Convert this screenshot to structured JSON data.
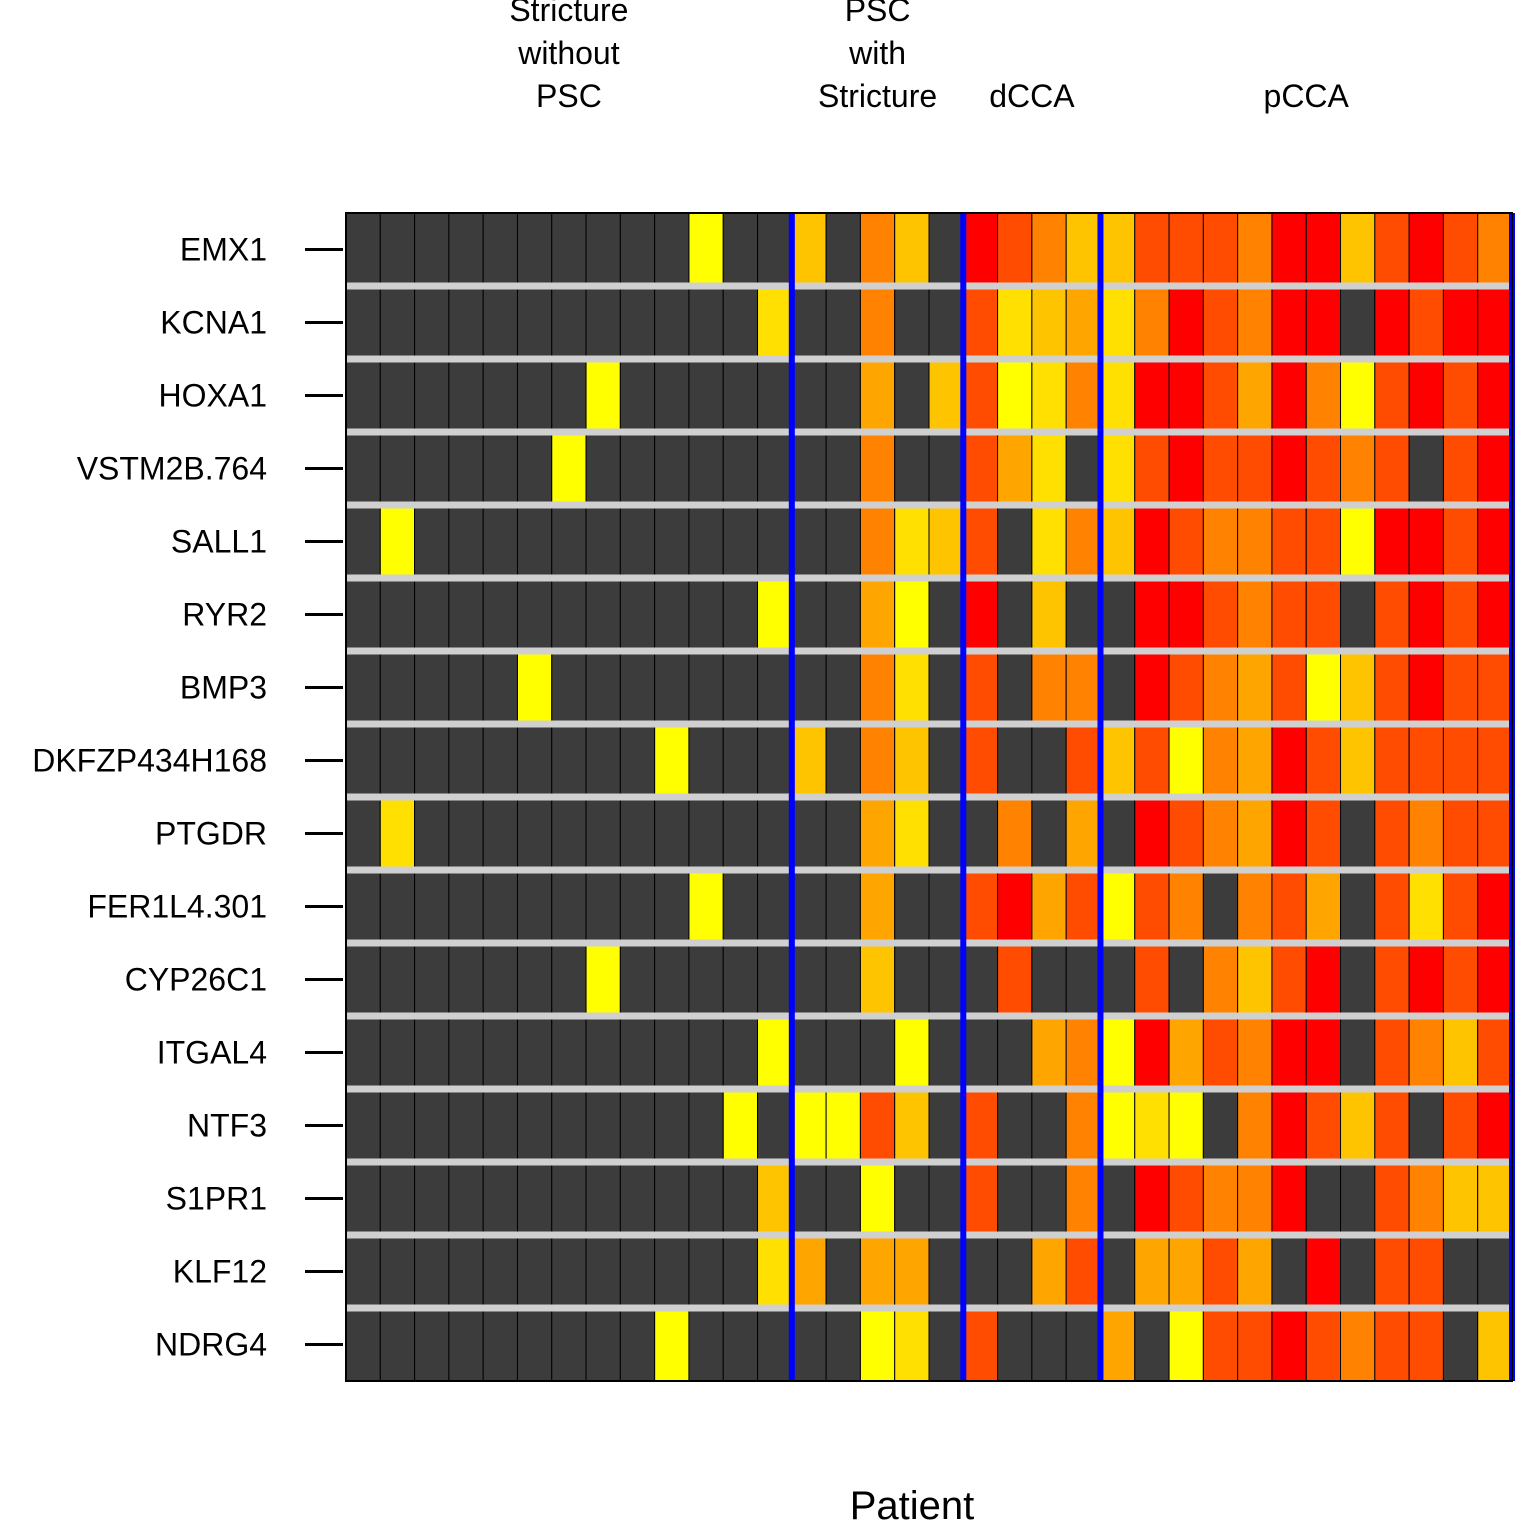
{
  "chart_data": {
    "type": "heatmap",
    "xlabel": "Patient",
    "groups": [
      {
        "label": [
          "Stricture",
          "without",
          "PSC"
        ],
        "count": 13
      },
      {
        "label": [
          "PSC",
          "with",
          "Stricture"
        ],
        "count": 5
      },
      {
        "label": [
          "dCCA"
        ],
        "count": 4
      },
      {
        "label": [
          "pCCA"
        ],
        "count": 12
      }
    ],
    "genes": [
      "EMX1",
      "KCNA1",
      "HOXA1",
      "VSTM2B.764",
      "SALL1",
      "RYR2",
      "BMP3",
      "DKFZP434H168",
      "PTGDR",
      "FER1L4.301",
      "CYP26C1",
      "ITGAL4",
      "NTF3",
      "S1PR1",
      "KLF12",
      "NDRG4"
    ],
    "value_scale": {
      "min": 0,
      "max": 7,
      "note": "0 = not methylated (dark grey); 1 = yellow ... 7 = red"
    },
    "palette": [
      "#3c3c3c",
      "#ffff00",
      "#ffe000",
      "#ffc400",
      "#ffa500",
      "#ff8300",
      "#ff4c00",
      "#ff0000"
    ],
    "group_separator_color": "#0000ff",
    "row_separator_color": "#d0d0d0",
    "values": [
      [
        0,
        0,
        0,
        0,
        0,
        0,
        0,
        0,
        0,
        0,
        1,
        0,
        0,
        3,
        0,
        5,
        3,
        0,
        7,
        6,
        5,
        3,
        3,
        6,
        6,
        6,
        5,
        7,
        7,
        3,
        6,
        7,
        6,
        5
      ],
      [
        0,
        0,
        0,
        0,
        0,
        0,
        0,
        0,
        0,
        0,
        0,
        0,
        2,
        0,
        0,
        5,
        0,
        0,
        6,
        2,
        3,
        4,
        2,
        5,
        7,
        6,
        5,
        7,
        7,
        0,
        7,
        6,
        7,
        7
      ],
      [
        0,
        0,
        0,
        0,
        0,
        0,
        0,
        1,
        0,
        0,
        0,
        0,
        0,
        0,
        0,
        4,
        0,
        3,
        6,
        1,
        2,
        5,
        2,
        7,
        7,
        6,
        4,
        7,
        5,
        1,
        6,
        7,
        6,
        7
      ],
      [
        0,
        0,
        0,
        0,
        0,
        0,
        1,
        0,
        0,
        0,
        0,
        0,
        0,
        0,
        0,
        5,
        0,
        0,
        6,
        4,
        2,
        0,
        2,
        6,
        7,
        6,
        6,
        7,
        6,
        5,
        6,
        0,
        6,
        7
      ],
      [
        0,
        1,
        0,
        0,
        0,
        0,
        0,
        0,
        0,
        0,
        0,
        0,
        0,
        0,
        0,
        5,
        2,
        3,
        6,
        0,
        2,
        5,
        3,
        7,
        6,
        5,
        5,
        6,
        6,
        1,
        7,
        7,
        6,
        7
      ],
      [
        0,
        0,
        0,
        0,
        0,
        0,
        0,
        0,
        0,
        0,
        0,
        0,
        1,
        0,
        0,
        4,
        1,
        0,
        7,
        0,
        3,
        0,
        0,
        7,
        7,
        6,
        5,
        6,
        6,
        0,
        6,
        7,
        6,
        7
      ],
      [
        0,
        0,
        0,
        0,
        0,
        1,
        0,
        0,
        0,
        0,
        0,
        0,
        0,
        0,
        0,
        5,
        2,
        0,
        6,
        0,
        5,
        5,
        0,
        7,
        6,
        5,
        4,
        6,
        1,
        3,
        6,
        7,
        6,
        6
      ],
      [
        0,
        0,
        0,
        0,
        0,
        0,
        0,
        0,
        0,
        1,
        0,
        0,
        0,
        3,
        0,
        5,
        3,
        0,
        6,
        0,
        0,
        6,
        3,
        6,
        1,
        5,
        4,
        7,
        6,
        3,
        6,
        6,
        6,
        6
      ],
      [
        0,
        2,
        0,
        0,
        0,
        0,
        0,
        0,
        0,
        0,
        0,
        0,
        0,
        0,
        0,
        4,
        2,
        0,
        0,
        5,
        0,
        4,
        0,
        7,
        6,
        5,
        4,
        7,
        6,
        0,
        6,
        5,
        6,
        6
      ],
      [
        0,
        0,
        0,
        0,
        0,
        0,
        0,
        0,
        0,
        0,
        1,
        0,
        0,
        0,
        0,
        4,
        0,
        0,
        6,
        7,
        4,
        6,
        1,
        6,
        5,
        0,
        5,
        6,
        4,
        0,
        6,
        2,
        6,
        7
      ],
      [
        0,
        0,
        0,
        0,
        0,
        0,
        0,
        1,
        0,
        0,
        0,
        0,
        0,
        0,
        0,
        3,
        0,
        0,
        0,
        6,
        0,
        0,
        0,
        6,
        0,
        5,
        3,
        6,
        7,
        0,
        6,
        7,
        6,
        7
      ],
      [
        0,
        0,
        0,
        0,
        0,
        0,
        0,
        0,
        0,
        0,
        0,
        0,
        1,
        0,
        0,
        0,
        1,
        0,
        0,
        0,
        4,
        5,
        1,
        7,
        4,
        6,
        5,
        7,
        7,
        0,
        6,
        5,
        3,
        6
      ],
      [
        0,
        0,
        0,
        0,
        0,
        0,
        0,
        0,
        0,
        0,
        0,
        1,
        0,
        1,
        1,
        6,
        3,
        0,
        6,
        0,
        0,
        5,
        1,
        2,
        1,
        0,
        5,
        7,
        6,
        3,
        6,
        0,
        6,
        7
      ],
      [
        0,
        0,
        0,
        0,
        0,
        0,
        0,
        0,
        0,
        0,
        0,
        0,
        3,
        0,
        0,
        1,
        0,
        0,
        6,
        0,
        0,
        5,
        0,
        7,
        6,
        5,
        5,
        7,
        0,
        0,
        6,
        5,
        3,
        3
      ],
      [
        0,
        0,
        0,
        0,
        0,
        0,
        0,
        0,
        0,
        0,
        0,
        0,
        2,
        4,
        0,
        4,
        4,
        0,
        0,
        0,
        4,
        6,
        0,
        4,
        4,
        6,
        4,
        0,
        7,
        0,
        6,
        6,
        0,
        0
      ],
      [
        0,
        0,
        0,
        0,
        0,
        0,
        0,
        0,
        0,
        1,
        0,
        0,
        0,
        0,
        0,
        1,
        2,
        0,
        6,
        0,
        0,
        0,
        4,
        0,
        1,
        6,
        6,
        7,
        6,
        5,
        6,
        6,
        0,
        3
      ]
    ]
  }
}
